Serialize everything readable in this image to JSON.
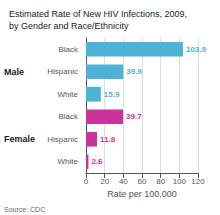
{
  "chart_data": {
    "type": "bar",
    "orientation": "horizontal",
    "title": "Estimated Rate of New HIV Infections, 2009,\nby Gender and Race/Ethnicity",
    "categories": [
      "Black",
      "Hispanic",
      "White",
      "Black",
      "Hispanic",
      "White"
    ],
    "series": [
      {
        "name": "Male",
        "color": "#4db3d6",
        "values": [
          103.9,
          39.9,
          15.9,
          null,
          null,
          null
        ]
      },
      {
        "name": "Female",
        "color": "#cc3399",
        "values": [
          null,
          null,
          null,
          39.7,
          11.8,
          2.6
        ]
      }
    ],
    "xlabel": "Rate per 100,000",
    "xlim": [
      0,
      120
    ],
    "xticks": [
      0,
      20,
      40,
      60,
      80,
      100,
      120
    ],
    "grid": true,
    "data_labels": true,
    "annotations": [
      "Source: CDC"
    ]
  }
}
